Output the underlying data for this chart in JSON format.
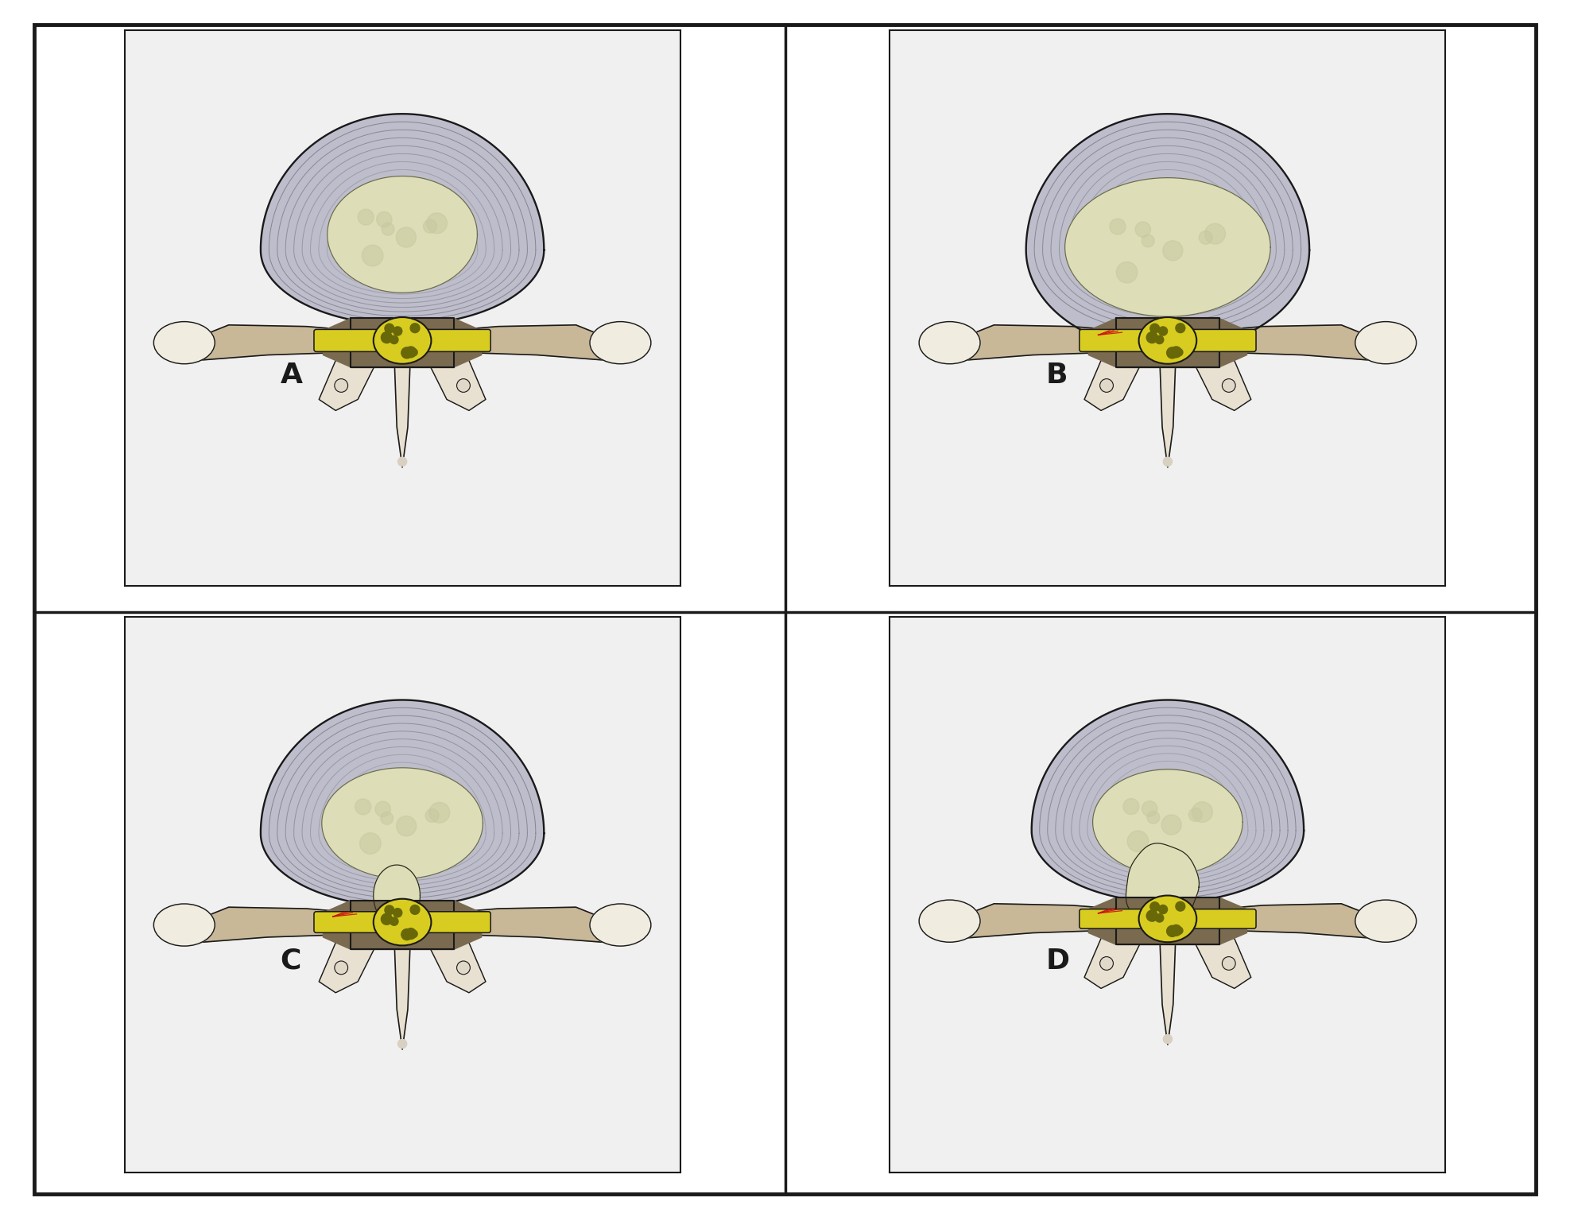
{
  "panels": [
    "A",
    "B",
    "C",
    "D"
  ],
  "bg_color": "#f0f0f0",
  "outer_bg": "#ffffff",
  "border_color": "#1a1a1a",
  "annulus_fill": "#b8b8c8",
  "annulus_ring": "#888898",
  "nucleus_fill": "#ddddb8",
  "nucleus_detail": "#c5c5a0",
  "vertebra_dark": "#7a6a50",
  "vertebra_mid": "#a09070",
  "vertebra_light": "#c8b898",
  "bone_white": "#e8e0d0",
  "bone_tip": "#f0ece0",
  "nerve_yellow": "#d8cc20",
  "nerve_dark_yellow": "#b0a010",
  "nerve_spot": "#686808",
  "red_color": "#cc3010",
  "line_dark": "#1a1a1a",
  "label_fontsize": 26
}
